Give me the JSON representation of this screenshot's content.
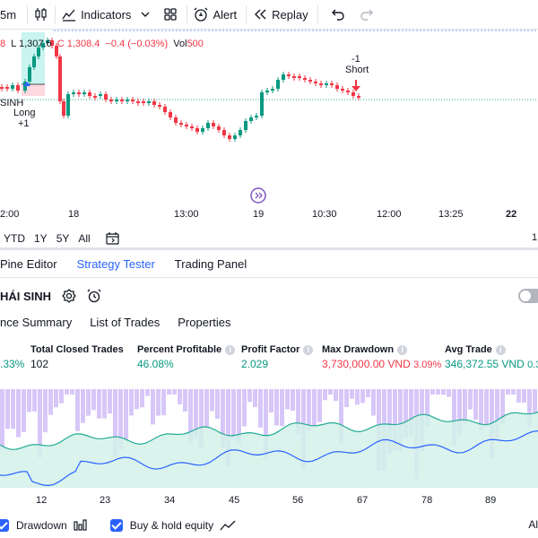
{
  "toolbar": {
    "interval": "5m",
    "indicators": "Indicators",
    "alert": "Alert",
    "replay": "Replay"
  },
  "legend": {
    "head": "8",
    "low": "L 1,307.6",
    "close": "C 1,308.4",
    "change": "−0.4 (−0.03%)",
    "vol_label": "Vol",
    "vol_value": "500"
  },
  "chart_labels": {
    "long": "Long",
    "long_qty": "+1",
    "short": "Short",
    "short_qty": "-1",
    "symbol_fragment": "SINH"
  },
  "time_axis": [
    "2:00",
    "18",
    "13:00",
    "19",
    "10:30",
    "12:00",
    "13:25",
    "22",
    "1"
  ],
  "range_bar": [
    "YTD",
    "1Y",
    "5Y",
    "All"
  ],
  "panel_tabs": [
    "Pine Editor",
    "Strategy Tester",
    "Trading Panel"
  ],
  "strategy": {
    "name": "HÁI SINH"
  },
  "sub_tabs": [
    "nce Summary",
    "List of Trades",
    "Properties"
  ],
  "metrics": {
    "first_value": ".33%",
    "total_closed_label": "Total Closed Trades",
    "total_closed_value": "102",
    "percent_profitable_label": "Percent Profitable",
    "percent_profitable_value": "46.08%",
    "profit_factor_label": "Profit Factor",
    "profit_factor_value": "2.029",
    "max_drawdown_label": "Max Drawdown",
    "max_drawdown_value": "3,730,000.00 VND",
    "max_drawdown_pct": "3.09%",
    "avg_trade_label": "Avg Trade",
    "avg_trade_value": "346,372.55 VND",
    "avg_trade_pct": "0.3"
  },
  "equity_axis": [
    "12",
    "23",
    "34",
    "45",
    "56",
    "67",
    "78",
    "89"
  ],
  "checks": {
    "drawdown": "Drawdown",
    "buy_hold": "Buy & hold equity",
    "right_fragment": "Al"
  },
  "colors": {
    "accent": "#2962ff",
    "up": "#089981",
    "down": "#f23645",
    "drawdown_bar": "#c9b4f5"
  }
}
